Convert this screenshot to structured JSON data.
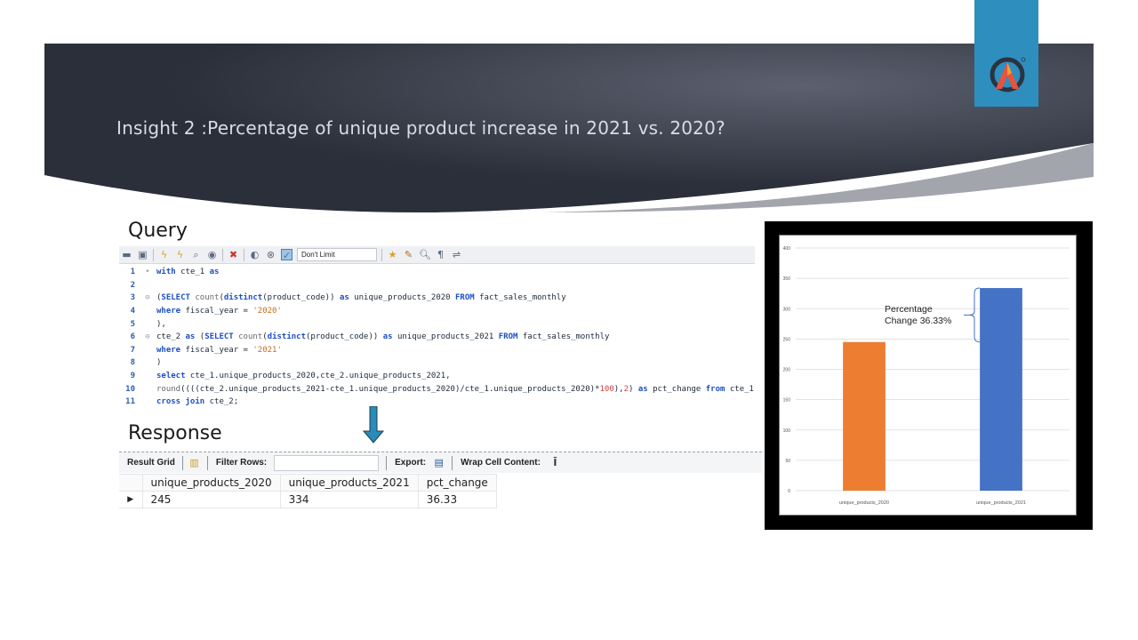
{
  "slide": {
    "title": "Insight 2 :Percentage of unique product increase in 2021 vs. 2020?",
    "query_label": "Query",
    "response_label": "Response"
  },
  "editor": {
    "limit_select": "Don't Limit",
    "lines": [
      {
        "n": "1",
        "gutter": "•",
        "tokens": [
          {
            "t": "with",
            "c": "kw"
          },
          {
            "t": " cte_1 ",
            "c": "plain"
          },
          {
            "t": "as",
            "c": "kw"
          }
        ]
      },
      {
        "n": "2",
        "gutter": "",
        "tokens": []
      },
      {
        "n": "3",
        "gutter": "⊖",
        "tokens": [
          {
            "t": "(",
            "c": "plain"
          },
          {
            "t": "SELECT",
            "c": "kw"
          },
          {
            "t": " count",
            "c": "fn"
          },
          {
            "t": "(",
            "c": "plain"
          },
          {
            "t": "distinct",
            "c": "kw"
          },
          {
            "t": "(product_code)) ",
            "c": "plain"
          },
          {
            "t": "as",
            "c": "kw"
          },
          {
            "t": " unique_products_2020 ",
            "c": "plain"
          },
          {
            "t": "FROM",
            "c": "kw"
          },
          {
            "t": " fact_sales_monthly",
            "c": "plain"
          }
        ]
      },
      {
        "n": "4",
        "gutter": "",
        "tokens": [
          {
            "t": "where",
            "c": "kw"
          },
          {
            "t": " fiscal_year = ",
            "c": "plain"
          },
          {
            "t": "'2020'",
            "c": "str"
          }
        ]
      },
      {
        "n": "5",
        "gutter": "",
        "tokens": [
          {
            "t": "),",
            "c": "plain"
          }
        ]
      },
      {
        "n": "6",
        "gutter": "⊖",
        "tokens": [
          {
            "t": "cte_2 ",
            "c": "plain"
          },
          {
            "t": "as",
            "c": "kw"
          },
          {
            "t": " (",
            "c": "plain"
          },
          {
            "t": "SELECT",
            "c": "kw"
          },
          {
            "t": " count",
            "c": "fn"
          },
          {
            "t": "(",
            "c": "plain"
          },
          {
            "t": "distinct",
            "c": "kw"
          },
          {
            "t": "(product_code)) ",
            "c": "plain"
          },
          {
            "t": "as",
            "c": "kw"
          },
          {
            "t": " unique_products_2021 ",
            "c": "plain"
          },
          {
            "t": "FROM",
            "c": "kw"
          },
          {
            "t": " fact_sales_monthly",
            "c": "plain"
          }
        ]
      },
      {
        "n": "7",
        "gutter": "",
        "tokens": [
          {
            "t": "where",
            "c": "kw"
          },
          {
            "t": " fiscal_year = ",
            "c": "plain"
          },
          {
            "t": "'2021'",
            "c": "str"
          }
        ]
      },
      {
        "n": "8",
        "gutter": "",
        "tokens": [
          {
            "t": ")",
            "c": "plain"
          }
        ]
      },
      {
        "n": "9",
        "gutter": "",
        "tokens": [
          {
            "t": "select",
            "c": "kw"
          },
          {
            "t": " cte_1.unique_products_2020,cte_2.unique_products_2021,",
            "c": "plain"
          }
        ]
      },
      {
        "n": "10",
        "gutter": "",
        "tokens": [
          {
            "t": "round",
            "c": "fn"
          },
          {
            "t": "((((cte_2.unique_products_2021-cte_1.unique_products_2020)/cte_1.unique_products_2020)*",
            "c": "plain"
          },
          {
            "t": "100",
            "c": "num"
          },
          {
            "t": "),",
            "c": "plain"
          },
          {
            "t": "2",
            "c": "num"
          },
          {
            "t": ") ",
            "c": "plain"
          },
          {
            "t": "as",
            "c": "kw"
          },
          {
            "t": " pct_change ",
            "c": "plain"
          },
          {
            "t": "from",
            "c": "kw"
          },
          {
            "t": " cte_1",
            "c": "plain"
          }
        ]
      },
      {
        "n": "11",
        "gutter": "",
        "tokens": [
          {
            "t": "cross join",
            "c": "kw"
          },
          {
            "t": " cte_2;",
            "c": "plain"
          }
        ]
      }
    ]
  },
  "result_toolbar": {
    "result_grid": "Result Grid",
    "filter_rows": "Filter Rows:",
    "export": "Export:",
    "wrap": "Wrap Cell Content:"
  },
  "result": {
    "columns": [
      "unique_products_2020",
      "unique_products_2021",
      "pct_change"
    ],
    "rows": [
      [
        "245",
        "334",
        "36.33"
      ]
    ],
    "row_marker": "▶"
  },
  "chart_data": {
    "type": "bar",
    "categories": [
      "unique_products_2020",
      "unique_products_2021"
    ],
    "values": [
      245,
      334
    ],
    "colors": [
      "#ed7d31",
      "#4472c4"
    ],
    "ylim": [
      0,
      400
    ],
    "yticks": [
      0,
      50,
      100,
      150,
      200,
      250,
      300,
      350,
      400
    ],
    "grid": true,
    "annotation": "Percentage\nChange 36.33%"
  },
  "colors": {
    "banner": "#3a3f4b",
    "logo_bg": "#2e8fbf",
    "arrow": "#2a8ab8"
  }
}
